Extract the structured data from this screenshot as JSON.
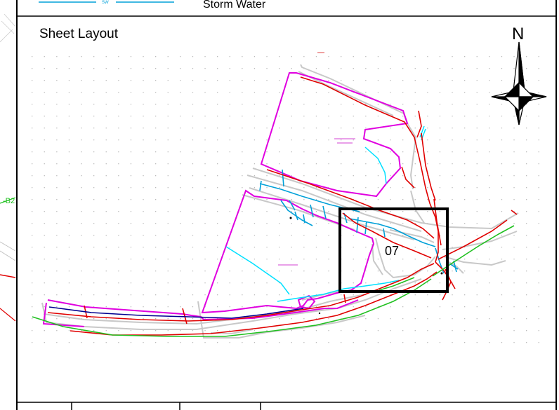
{
  "legend": {
    "tag": "SW",
    "label": "Storm Water"
  },
  "panel": {
    "title": "Sheet Layout",
    "north_label": "N",
    "sheet_number": "07"
  },
  "offsheet": {
    "label": "-B2"
  },
  "colors": {
    "frame": "#000000",
    "boundary": "#e000e0",
    "storm_water": "#00a0d8",
    "main_red": "#e00000",
    "pipe_green": "#20c020",
    "pipe_blue": "#000090",
    "cyan_line": "#00e0ff",
    "road_grey": "#c8c8c8",
    "grid_dot": "#bbbbbb"
  },
  "icons": [
    "north-arrow-icon"
  ]
}
